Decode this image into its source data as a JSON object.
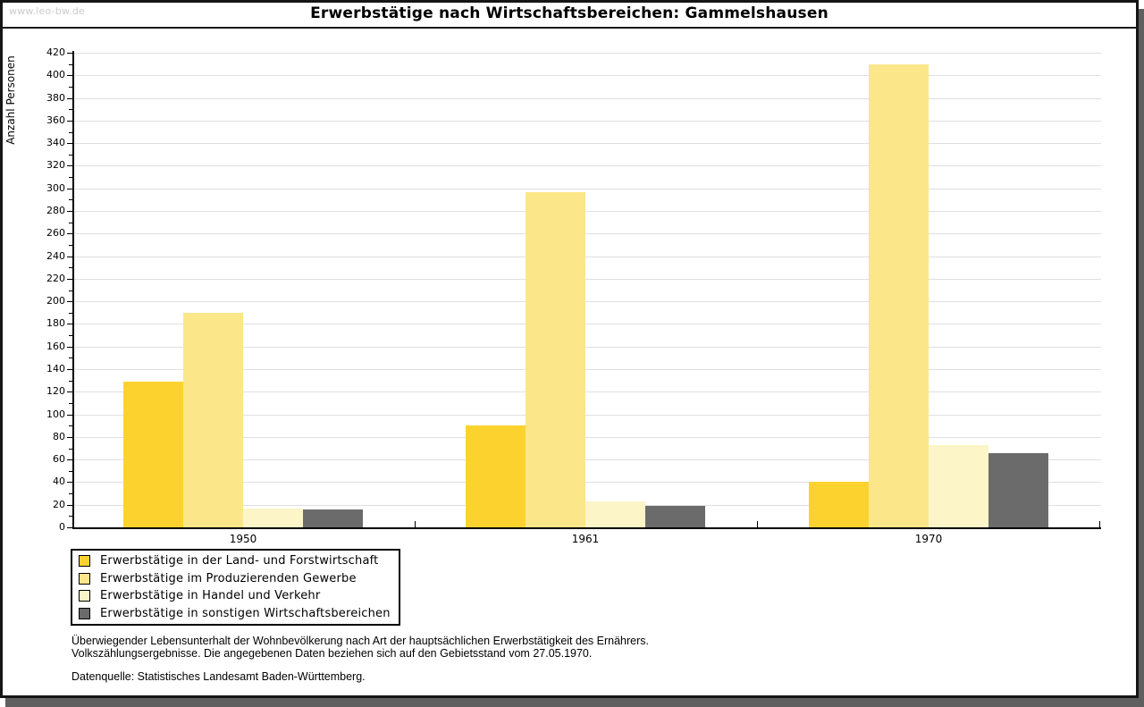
{
  "page": {
    "watermark": "www.leo-bw.de"
  },
  "chart_data": {
    "type": "bar",
    "title": "Erwerbstätige nach Wirtschaftsbereichen: Gammelshausen",
    "ylabel": "Anzahl Personen",
    "xlabel": "",
    "categories": [
      "1950",
      "1961",
      "1970"
    ],
    "series": [
      {
        "name": "Erwerbstätige in der Land- und Forstwirtschaft",
        "color": "#fcd32e",
        "values": [
          129,
          90,
          40
        ]
      },
      {
        "name": "Erwerbstätige im Produzierenden Gewerbe",
        "color": "#fbe78a",
        "values": [
          190,
          297,
          410
        ]
      },
      {
        "name": "Erwerbstätige in Handel und Verkehr",
        "color": "#fcf5c8",
        "values": [
          17,
          23,
          73
        ]
      },
      {
        "name": "Erwerbstätige in sonstigen Wirtschaftsbereichen",
        "color": "#6b6b6b",
        "values": [
          16,
          19,
          66
        ]
      }
    ],
    "ylim": [
      0,
      420
    ],
    "ytick_step": 20,
    "yminor_step": 10,
    "grid": "horizontal-major",
    "legend_position": "bottom-left"
  },
  "footer": {
    "note_line1": "Überwiegender Lebensunterhalt der Wohnbevölkerung nach Art der hauptsächlichen Erwerbstätigkeit des Ernährers.",
    "note_line2": "Volkszählungsergebnisse. Die angegebenen Daten beziehen sich auf den Gebietsstand vom 27.05.1970.",
    "source": "Datenquelle: Statistisches Landesamt Baden-Württemberg."
  }
}
